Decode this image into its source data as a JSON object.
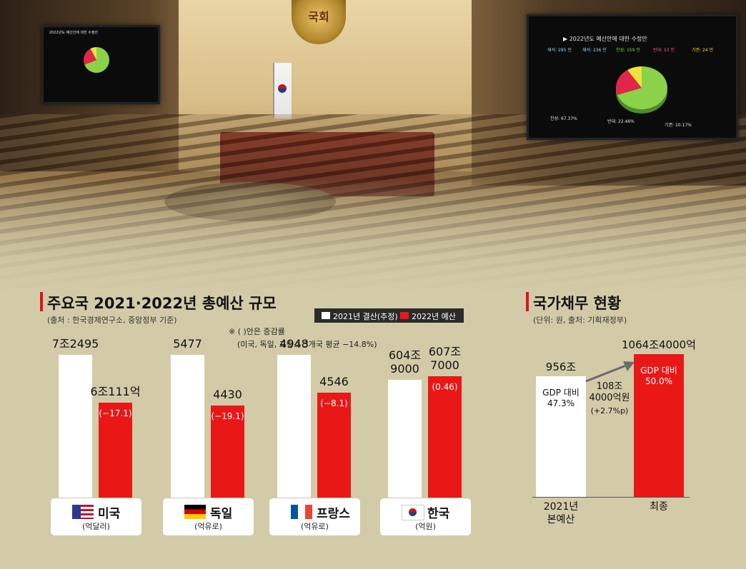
{
  "photo": {
    "emblem_text": "국회",
    "left_screen": {
      "title": "2022년도 예산안에 대한 수정안",
      "slices": [
        {
          "label": "찬성",
          "value": 67.37,
          "color": "#8bd14a"
        },
        {
          "label": "반대",
          "value": 22.46,
          "color": "#e0264a"
        },
        {
          "label": "기권",
          "value": 10.17,
          "color": "#f0e23a"
        }
      ]
    },
    "right_screen": {
      "title": "▶ 2022년도 예산안에 대한 수정안",
      "stats": [
        "재석: 295 인",
        "재석: 236 인",
        "찬성: 159 인",
        "반대: 53 인",
        "기권: 24 인"
      ],
      "legend": [
        "찬성: 67.37%",
        "반대: 22.46%",
        "기권: 10.17%"
      ]
    }
  },
  "left_panel": {
    "title": "주요국 2021·2022년 총예산 규모",
    "source": "(출처 : 한국경제연구소, 중앙정부 기준)",
    "legend": {
      "white": "2021년 결산(추정)",
      "red": "2022년 예산"
    },
    "note_line1": "※ ( )안은 증감률",
    "note_line2": "(미국, 독일, 프랑스 3개국 평균 −14.8%)"
  },
  "right_panel": {
    "title": "국가채무 현황",
    "source": "(단위: 원, 출처: 기획재정부)"
  },
  "colors": {
    "accent_red": "#ea1717",
    "bar_white": "#ffffff",
    "background": "#d3cba8"
  },
  "chart_data": [
    {
      "type": "bar",
      "title": "주요국 2021·2022년 총예산 규모",
      "categories": [
        "미국",
        "독일",
        "프랑스",
        "한국"
      ],
      "units": [
        "(억달러)",
        "(억유로)",
        "(억유로)",
        "(억원)"
      ],
      "series": [
        {
          "name": "2021년 결산(추정)",
          "values": [
            72495,
            5477,
            4948,
            6049000
          ],
          "labels": [
            "7조2495",
            "5477",
            "4948",
            "604조\n9000"
          ]
        },
        {
          "name": "2022년 예산",
          "values": [
            60111,
            4430,
            4546,
            6077000
          ],
          "labels": [
            "6조111억",
            "4430",
            "4546",
            "607조\n7000"
          ],
          "change_labels": [
            "(−17.1)",
            "(−19.1)",
            "(−8.1)",
            "(0.46)"
          ]
        }
      ]
    },
    {
      "type": "bar",
      "title": "국가채무 현황",
      "categories": [
        "2021년\n본예산",
        "최종"
      ],
      "values": [
        9560000,
        10644000
      ],
      "value_labels": [
        "956조",
        "1064조4000억"
      ],
      "inner_labels": [
        "GDP 대비\n47.3%",
        "GDP 대비\n50.0%"
      ],
      "annotation": {
        "line1": "108조",
        "line2": "4000억원",
        "line3": "(+2.7%p)"
      }
    }
  ]
}
